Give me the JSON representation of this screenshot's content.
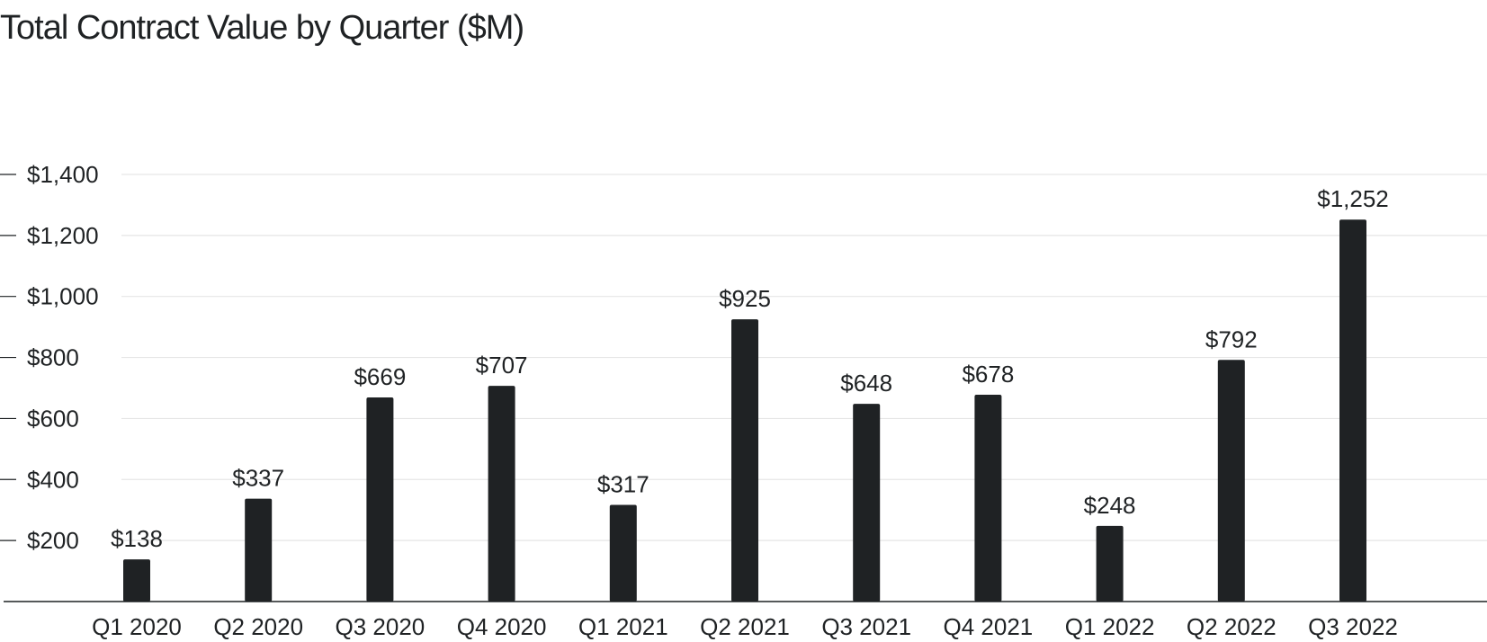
{
  "chart_data": {
    "type": "bar",
    "title": "Total Contract Value by Quarter ($M)",
    "xlabel": "",
    "ylabel": "",
    "categories": [
      "Q1 2020",
      "Q2 2020",
      "Q3 2020",
      "Q4 2020",
      "Q1 2021",
      "Q2 2021",
      "Q3 2021",
      "Q4 2021",
      "Q1 2022",
      "Q2 2022",
      "Q3 2022"
    ],
    "values": [
      138,
      337,
      669,
      707,
      317,
      925,
      648,
      678,
      248,
      792,
      1252
    ],
    "data_labels": [
      "$138",
      "$337",
      "$669",
      "$707",
      "$317",
      "$925",
      "$648",
      "$678",
      "$248",
      "$792",
      "$1,252"
    ],
    "ylim": [
      0,
      1400
    ],
    "yticks": [
      200,
      400,
      600,
      800,
      1000,
      1200,
      1400
    ],
    "ytick_labels": [
      "$200",
      "$400",
      "$600",
      "$800",
      "$1,000",
      "$1,200",
      "$1,400"
    ],
    "grid": true,
    "legend": "none",
    "colors": {
      "bar": "#1f2224",
      "text": "#1f2224",
      "grid": "#e6e6e6",
      "axis": "#1f2224"
    }
  }
}
